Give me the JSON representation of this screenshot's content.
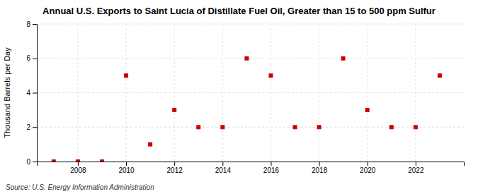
{
  "chart_data": {
    "type": "scatter",
    "title": "Annual U.S. Exports to Saint Lucia of Distillate Fuel Oil, Greater than 15 to 500 ppm Sulfur",
    "ylabel": "Thousand Barrels per Day",
    "annotations": [
      "Source: U.S. Energy Information Administration"
    ],
    "x": [
      2007,
      2008,
      2009,
      2010,
      2011,
      2012,
      2013,
      2014,
      2015,
      2016,
      2017,
      2018,
      2019,
      2020,
      2021,
      2022,
      2023
    ],
    "values": [
      0.0,
      0.0,
      0.0,
      5.0,
      1.0,
      3.0,
      2.0,
      2.0,
      6.0,
      5.0,
      2.0,
      2.0,
      6.0,
      3.0,
      2.0,
      2.0,
      5.0
    ],
    "color": "#cc0000",
    "marker": "square",
    "xlim": [
      2006.3,
      2024.0
    ],
    "xticks": [
      2008,
      2010,
      2012,
      2014,
      2016,
      2018,
      2020,
      2022
    ],
    "ylim": [
      0,
      8
    ],
    "yticks": [
      0,
      2,
      4,
      6,
      8
    ],
    "grid": true
  }
}
